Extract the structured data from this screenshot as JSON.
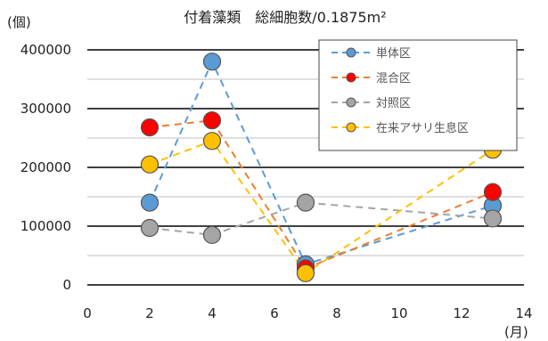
{
  "chart_data": {
    "type": "scatter",
    "title": "付着藻類　総細胞数/0.1875m²",
    "ylabel": "(個)",
    "xlabel": "(月)",
    "xlim": [
      0,
      14
    ],
    "ylim": [
      0,
      400000
    ],
    "xticks": [
      0,
      2,
      4,
      6,
      8,
      10,
      12,
      14
    ],
    "yticks": [
      0,
      100000,
      200000,
      300000,
      400000
    ],
    "grid": "major and minor horizontal",
    "legend_position": "top-right",
    "series": [
      {
        "name": "単体区",
        "color": "#5b9bd5",
        "points": [
          [
            2,
            140000
          ],
          [
            4,
            380000
          ],
          [
            7,
            35000
          ],
          [
            13,
            135000
          ]
        ]
      },
      {
        "name": "混合区",
        "color": "#ff0000",
        "line_color": "#ed7d31",
        "points": [
          [
            2,
            268000
          ],
          [
            4,
            280000
          ],
          [
            7,
            28000
          ],
          [
            13,
            158000
          ]
        ]
      },
      {
        "name": "対照区",
        "color": "#a5a5a5",
        "points": [
          [
            2,
            97000
          ],
          [
            4,
            85000
          ],
          [
            7,
            140000
          ],
          [
            13,
            113000
          ]
        ]
      },
      {
        "name": "在来アサリ生息区",
        "color": "#ffc000",
        "points": [
          [
            2,
            205000
          ],
          [
            4,
            245000
          ],
          [
            7,
            20000
          ],
          [
            13,
            230000
          ]
        ]
      }
    ]
  }
}
